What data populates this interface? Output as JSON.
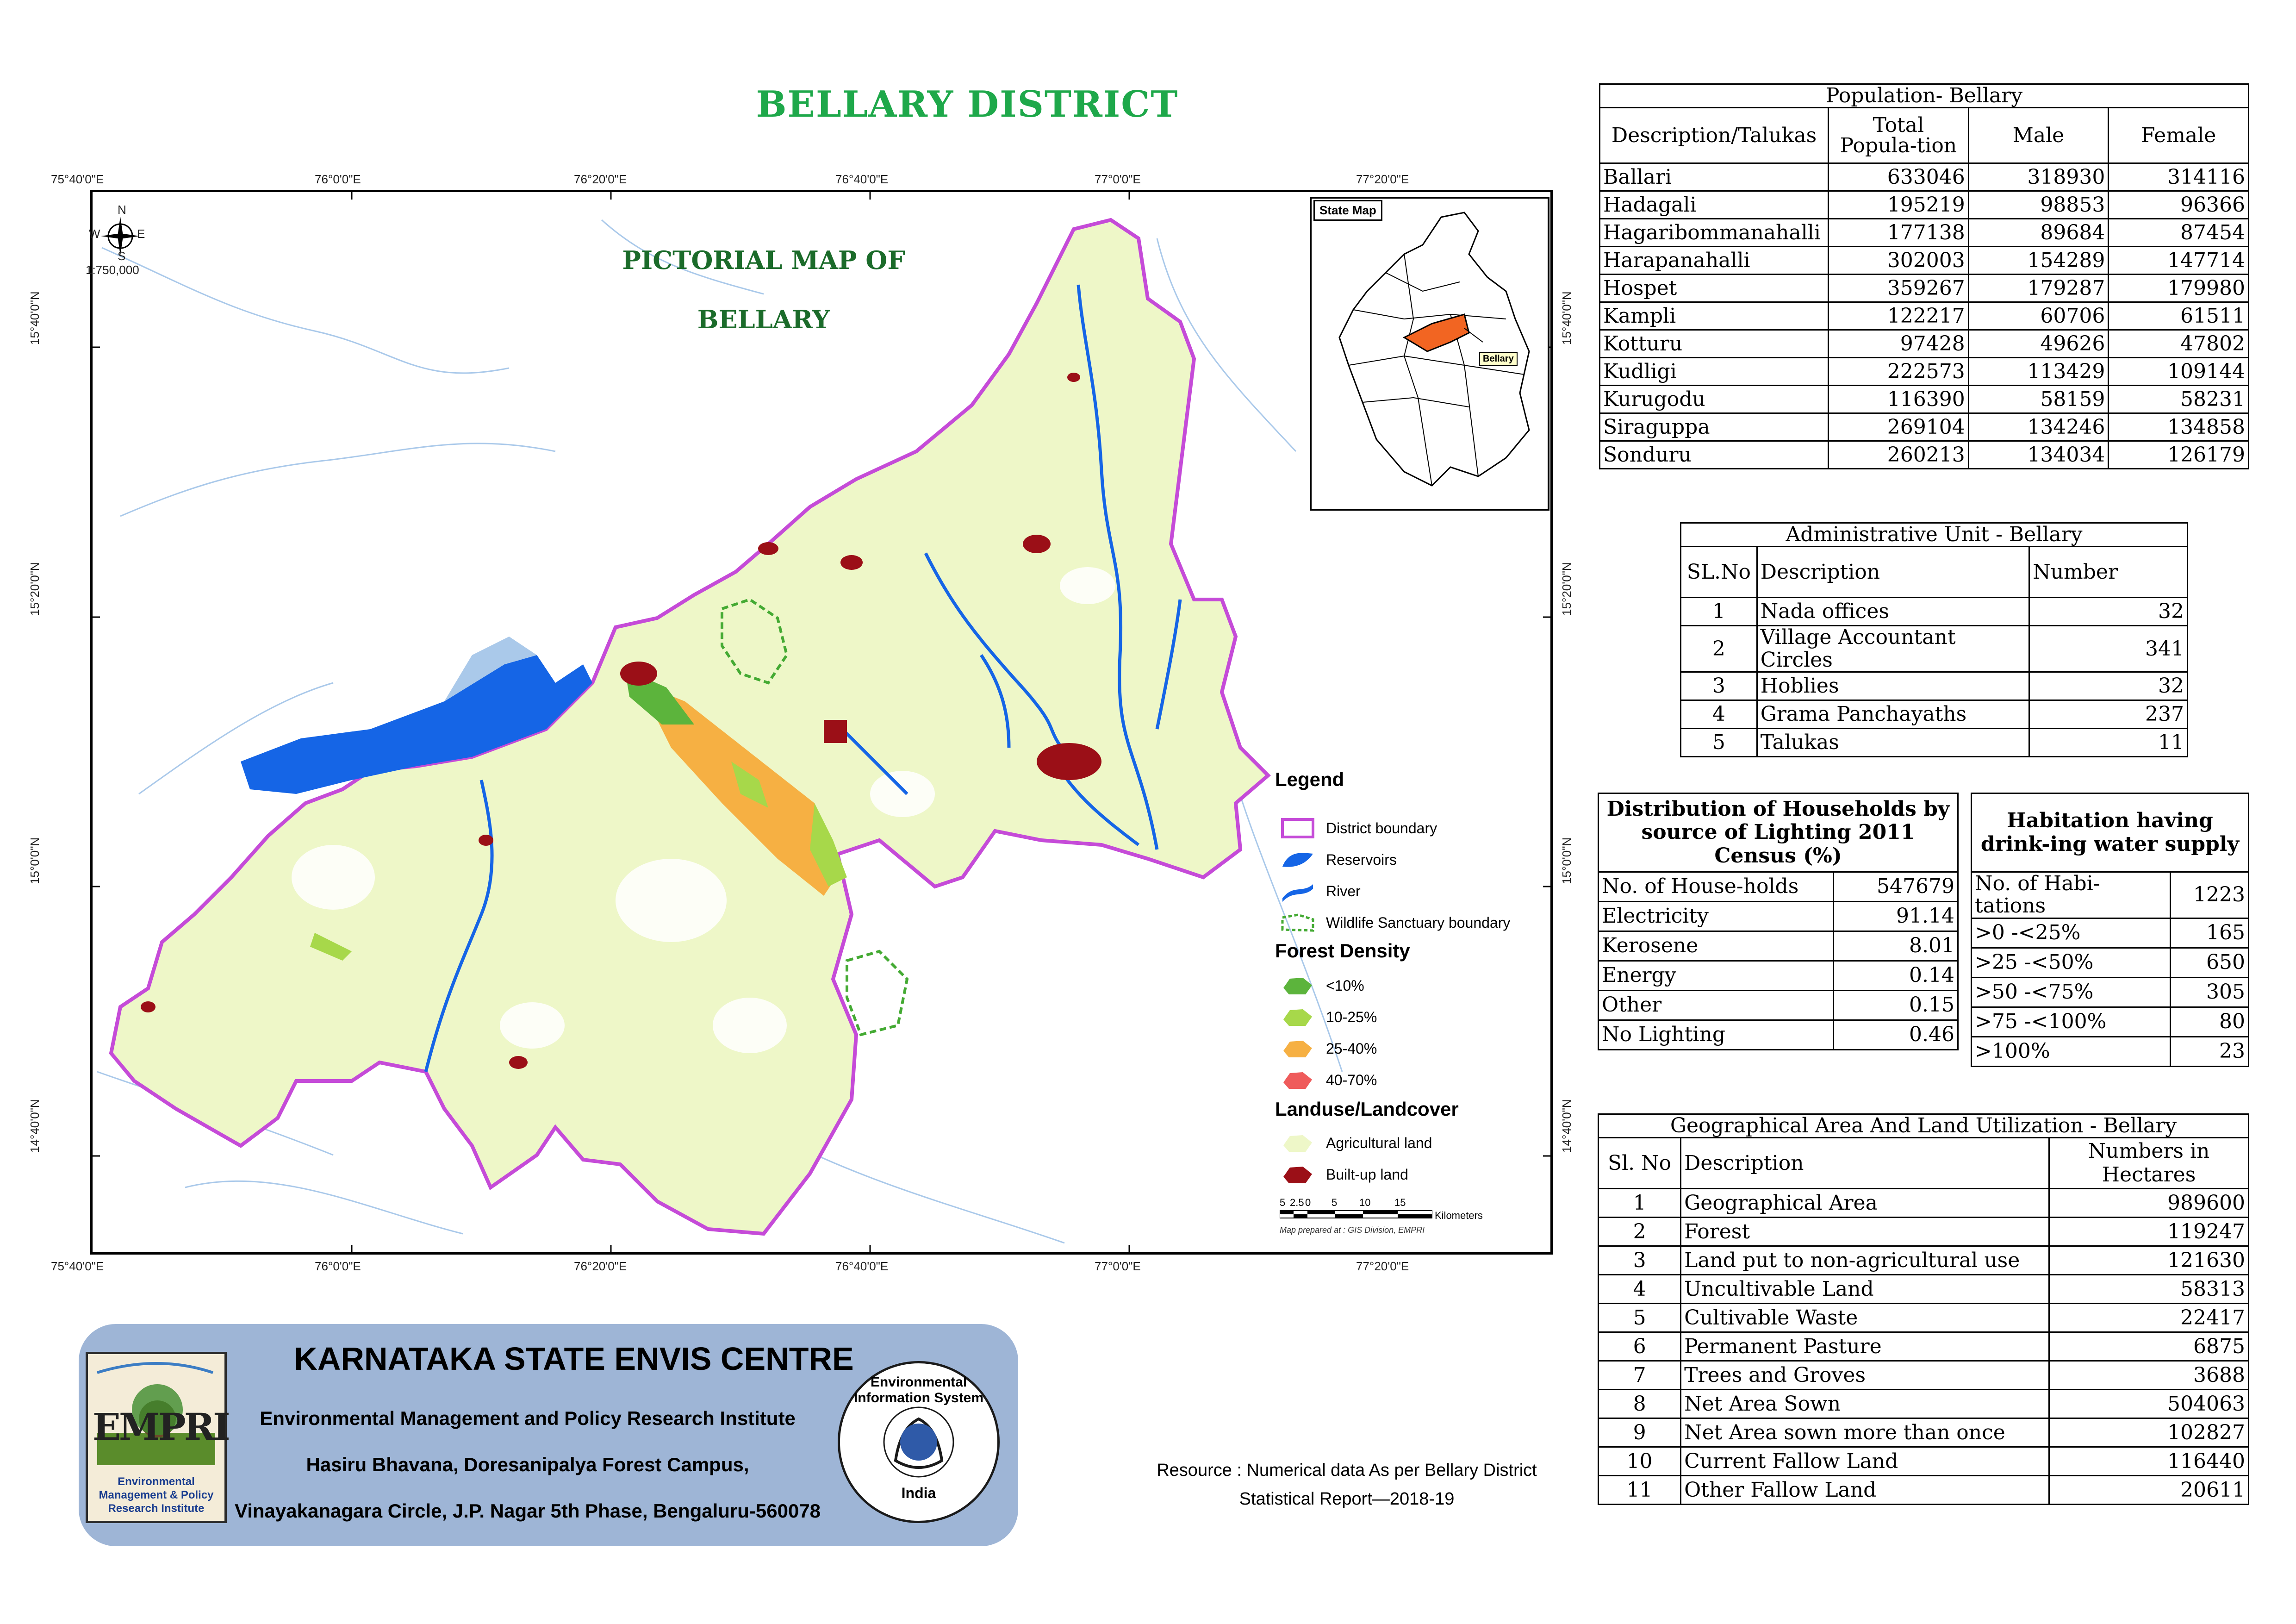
{
  "title": "BELLARY DISTRICT",
  "map": {
    "pictorial_line1": "PICTORIAL MAP OF",
    "pictorial_line2": "BELLARY",
    "scale_ratio": "1:750,000",
    "compass": {
      "n": "N",
      "s": "S",
      "e": "E",
      "w": "W"
    },
    "top_ticks": [
      "75°40'0\"E",
      "76°0'0\"E",
      "76°20'0\"E",
      "76°40'0\"E",
      "77°0'0\"E",
      "77°20'0\"E"
    ],
    "bottom_ticks": [
      "75°40'0\"E",
      "76°0'0\"E",
      "76°20'0\"E",
      "76°40'0\"E",
      "77°0'0\"E",
      "77°20'0\"E"
    ],
    "left_ticks": [
      "15°40'0\"N",
      "15°20'0\"N",
      "15°0'0\"N",
      "14°40'0\"N"
    ],
    "right_ticks": [
      "15°40'0\"N",
      "15°20'0\"N",
      "15°0'0\"N",
      "14°40'0\"N"
    ],
    "inset_title": "State Map",
    "inset_label": "Bellary",
    "scalebar_ticks": [
      "5",
      "2.5",
      "0",
      "5",
      "10",
      "15"
    ],
    "scalebar_unit": "Kilometers",
    "prepared_by": "Map prepared at : GIS Division, EMPRI",
    "colors": {
      "agri": "#eef7c8",
      "boundary": "#c54bd8",
      "water": "#1565e6",
      "builtup": "#9b0f17",
      "forest1": "#5cb43c",
      "forest2": "#a7d84a",
      "forest3": "#f6b043",
      "forest4": "#ef5b5b",
      "sanctuary": "#44aa33",
      "river_bg": "#aac9ea",
      "bellary_fill": "#f26522"
    }
  },
  "legend": {
    "title": "Legend",
    "items": [
      {
        "label": "District boundary"
      },
      {
        "label": "Reservoirs"
      },
      {
        "label": "River"
      },
      {
        "label": "Wildlife Sanctuary boundary"
      }
    ],
    "forest_title": "Forest Density",
    "forest_items": [
      "<10%",
      "10-25%",
      "25-40%",
      "40-70%"
    ],
    "landuse_title": "Landuse/Landcover",
    "landuse_items": [
      "Agricultural land",
      "Built-up land"
    ]
  },
  "population": {
    "caption": "Population- Bellary",
    "headers": [
      "Description/Talukas",
      "Total Popula-tion",
      "Male",
      "Female"
    ],
    "rows": [
      [
        "Ballari",
        "633046",
        "318930",
        "314116"
      ],
      [
        "Hadagali",
        "195219",
        "98853",
        "96366"
      ],
      [
        "Hagaribommanahalli",
        "177138",
        "89684",
        "87454"
      ],
      [
        "Harapanahalli",
        "302003",
        "154289",
        "147714"
      ],
      [
        "Hospet",
        "359267",
        "179287",
        "179980"
      ],
      [
        "Kampli",
        "122217",
        "60706",
        "61511"
      ],
      [
        "Kotturu",
        "97428",
        "49626",
        "47802"
      ],
      [
        "Kudligi",
        "222573",
        "113429",
        "109144"
      ],
      [
        "Kurugodu",
        "116390",
        "58159",
        "58231"
      ],
      [
        "Siraguppa",
        "269104",
        "134246",
        "134858"
      ],
      [
        "Sonduru",
        "260213",
        "134034",
        "126179"
      ]
    ]
  },
  "admin": {
    "caption": "Administrative Unit - Bellary",
    "headers": [
      "SL.No",
      "Description",
      "Number"
    ],
    "rows": [
      [
        "1",
        "Nada offices",
        "32"
      ],
      [
        "2",
        "Village Accountant Circles",
        "341"
      ],
      [
        "3",
        "Hoblies",
        "32"
      ],
      [
        "4",
        "Grama Panchayaths",
        "237"
      ],
      [
        "5",
        "Talukas",
        "11"
      ]
    ]
  },
  "lighting": {
    "caption": "Distribution of Households by source of Lighting 2011 Census (%)",
    "rows": [
      [
        "No. of House-holds",
        "547679"
      ],
      [
        "Electricity",
        "91.14"
      ],
      [
        "Kerosene",
        "8.01"
      ],
      [
        "Energy",
        "0.14"
      ],
      [
        "Other",
        "0.15"
      ],
      [
        "No Lighting",
        "0.46"
      ]
    ]
  },
  "water": {
    "caption": "Habitation having drink-ing water supply",
    "rows": [
      [
        "No. of Habi-tations",
        "1223"
      ],
      [
        ">0 -<25%",
        "165"
      ],
      [
        ">25 -<50%",
        "650"
      ],
      [
        ">50 -<75%",
        "305"
      ],
      [
        ">75 -<100%",
        "80"
      ],
      [
        ">100%",
        "23"
      ]
    ]
  },
  "land": {
    "caption": "Geographical Area  And Land Utilization - Bellary",
    "headers": [
      "Sl. No",
      "Description",
      "Numbers in Hectares"
    ],
    "rows": [
      [
        "1",
        "Geographical Area",
        "989600"
      ],
      [
        "2",
        "Forest",
        "119247"
      ],
      [
        "3",
        "Land put to non-agricultural use",
        "121630"
      ],
      [
        "4",
        "Uncultivable Land",
        "58313"
      ],
      [
        "5",
        "Cultivable Waste",
        "22417"
      ],
      [
        "6",
        "Permanent Pasture",
        "6875"
      ],
      [
        "7",
        "Trees and Groves",
        "3688"
      ],
      [
        "8",
        "Net Area Sown",
        "504063"
      ],
      [
        "9",
        "Net Area sown more than once",
        "102827"
      ],
      [
        "10",
        "Current Fallow Land",
        "116440"
      ],
      [
        "11",
        "Other Fallow Land",
        "20611"
      ]
    ]
  },
  "envis": {
    "title": "KARNATAKA STATE ENVIS CENTRE",
    "line1": "Environmental Management and Policy Research Institute",
    "line2": "Hasiru Bhavana, Doresanipalya Forest Campus,",
    "line3": "Vinayakanagara Circle, J.P. Nagar 5th Phase, Bengaluru-560078",
    "empri_logo_text": "EMPRI",
    "empri_logo_caption": "Environmental Management & Policy Research Institute",
    "eis_logo_text": "Environmental Information System",
    "eis_logo_country": "India"
  },
  "resource": {
    "line1": "Resource : Numerical data As per Bellary District",
    "line2": "Statistical Report—2018-19"
  }
}
